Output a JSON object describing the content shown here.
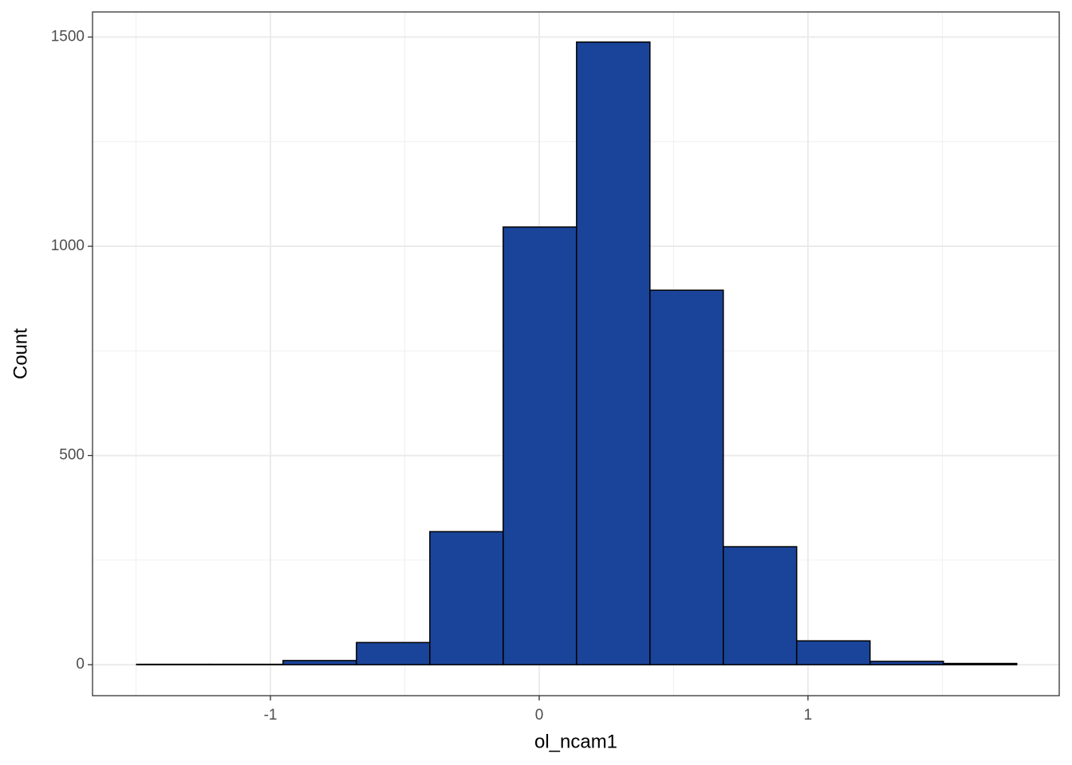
{
  "chart_data": {
    "type": "histogram",
    "x_label": "ol_ncam1",
    "y_label": "Count",
    "bins": [
      -1.498,
      -1.225,
      -0.953,
      -0.68,
      -0.407,
      -0.134,
      0.139,
      0.412,
      0.685,
      0.958,
      1.231,
      1.504,
      1.777
    ],
    "values": [
      1,
      1,
      10,
      53,
      318,
      1046,
      1488,
      895,
      282,
      57,
      8,
      3
    ],
    "color": "#1a4499",
    "edge_color": "#000000",
    "xlim": [
      -1.662,
      1.935
    ],
    "ylim": [
      -74,
      1560
    ],
    "xticks": [
      -1,
      0,
      1
    ],
    "yticks": [
      0,
      500,
      1000,
      1500
    ],
    "x_minor_grid": [
      -1.5,
      -0.5,
      0.5,
      1.5
    ],
    "y_minor_grid": [
      250,
      750,
      1250
    ],
    "grid": true
  }
}
